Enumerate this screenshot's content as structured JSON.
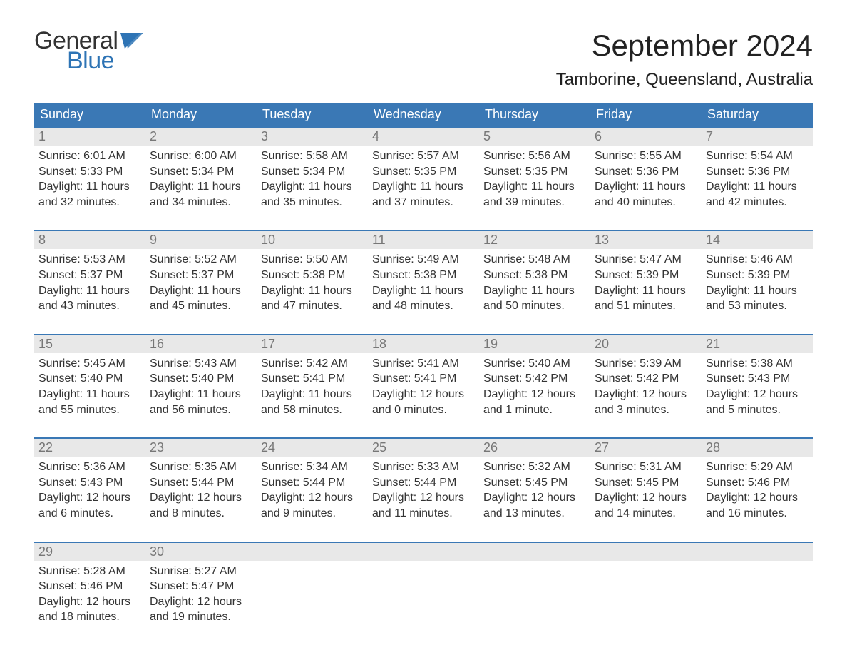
{
  "logo": {
    "text_top": "General",
    "text_bottom": "Blue",
    "flag_color": "#2e74b5",
    "text_color_top": "#333333"
  },
  "header": {
    "month_title": "September 2024",
    "location": "Tamborine, Queensland, Australia"
  },
  "styling": {
    "header_bg": "#3a78b5",
    "header_text": "#ffffff",
    "daynum_bg": "#e8e8e8",
    "daynum_text": "#777777",
    "week_border": "#3a78b5",
    "body_text": "#333333",
    "page_bg": "#ffffff",
    "weekday_fontsize": 18,
    "daynum_fontsize": 18,
    "body_fontsize": 16,
    "title_fontsize": 42,
    "location_fontsize": 24
  },
  "weekdays": [
    "Sunday",
    "Monday",
    "Tuesday",
    "Wednesday",
    "Thursday",
    "Friday",
    "Saturday"
  ],
  "weeks": [
    [
      {
        "day": "1",
        "sunrise": "Sunrise: 6:01 AM",
        "sunset": "Sunset: 5:33 PM",
        "dl1": "Daylight: 11 hours",
        "dl2": "and 32 minutes."
      },
      {
        "day": "2",
        "sunrise": "Sunrise: 6:00 AM",
        "sunset": "Sunset: 5:34 PM",
        "dl1": "Daylight: 11 hours",
        "dl2": "and 34 minutes."
      },
      {
        "day": "3",
        "sunrise": "Sunrise: 5:58 AM",
        "sunset": "Sunset: 5:34 PM",
        "dl1": "Daylight: 11 hours",
        "dl2": "and 35 minutes."
      },
      {
        "day": "4",
        "sunrise": "Sunrise: 5:57 AM",
        "sunset": "Sunset: 5:35 PM",
        "dl1": "Daylight: 11 hours",
        "dl2": "and 37 minutes."
      },
      {
        "day": "5",
        "sunrise": "Sunrise: 5:56 AM",
        "sunset": "Sunset: 5:35 PM",
        "dl1": "Daylight: 11 hours",
        "dl2": "and 39 minutes."
      },
      {
        "day": "6",
        "sunrise": "Sunrise: 5:55 AM",
        "sunset": "Sunset: 5:36 PM",
        "dl1": "Daylight: 11 hours",
        "dl2": "and 40 minutes."
      },
      {
        "day": "7",
        "sunrise": "Sunrise: 5:54 AM",
        "sunset": "Sunset: 5:36 PM",
        "dl1": "Daylight: 11 hours",
        "dl2": "and 42 minutes."
      }
    ],
    [
      {
        "day": "8",
        "sunrise": "Sunrise: 5:53 AM",
        "sunset": "Sunset: 5:37 PM",
        "dl1": "Daylight: 11 hours",
        "dl2": "and 43 minutes."
      },
      {
        "day": "9",
        "sunrise": "Sunrise: 5:52 AM",
        "sunset": "Sunset: 5:37 PM",
        "dl1": "Daylight: 11 hours",
        "dl2": "and 45 minutes."
      },
      {
        "day": "10",
        "sunrise": "Sunrise: 5:50 AM",
        "sunset": "Sunset: 5:38 PM",
        "dl1": "Daylight: 11 hours",
        "dl2": "and 47 minutes."
      },
      {
        "day": "11",
        "sunrise": "Sunrise: 5:49 AM",
        "sunset": "Sunset: 5:38 PM",
        "dl1": "Daylight: 11 hours",
        "dl2": "and 48 minutes."
      },
      {
        "day": "12",
        "sunrise": "Sunrise: 5:48 AM",
        "sunset": "Sunset: 5:38 PM",
        "dl1": "Daylight: 11 hours",
        "dl2": "and 50 minutes."
      },
      {
        "day": "13",
        "sunrise": "Sunrise: 5:47 AM",
        "sunset": "Sunset: 5:39 PM",
        "dl1": "Daylight: 11 hours",
        "dl2": "and 51 minutes."
      },
      {
        "day": "14",
        "sunrise": "Sunrise: 5:46 AM",
        "sunset": "Sunset: 5:39 PM",
        "dl1": "Daylight: 11 hours",
        "dl2": "and 53 minutes."
      }
    ],
    [
      {
        "day": "15",
        "sunrise": "Sunrise: 5:45 AM",
        "sunset": "Sunset: 5:40 PM",
        "dl1": "Daylight: 11 hours",
        "dl2": "and 55 minutes."
      },
      {
        "day": "16",
        "sunrise": "Sunrise: 5:43 AM",
        "sunset": "Sunset: 5:40 PM",
        "dl1": "Daylight: 11 hours",
        "dl2": "and 56 minutes."
      },
      {
        "day": "17",
        "sunrise": "Sunrise: 5:42 AM",
        "sunset": "Sunset: 5:41 PM",
        "dl1": "Daylight: 11 hours",
        "dl2": "and 58 minutes."
      },
      {
        "day": "18",
        "sunrise": "Sunrise: 5:41 AM",
        "sunset": "Sunset: 5:41 PM",
        "dl1": "Daylight: 12 hours",
        "dl2": "and 0 minutes."
      },
      {
        "day": "19",
        "sunrise": "Sunrise: 5:40 AM",
        "sunset": "Sunset: 5:42 PM",
        "dl1": "Daylight: 12 hours",
        "dl2": "and 1 minute."
      },
      {
        "day": "20",
        "sunrise": "Sunrise: 5:39 AM",
        "sunset": "Sunset: 5:42 PM",
        "dl1": "Daylight: 12 hours",
        "dl2": "and 3 minutes."
      },
      {
        "day": "21",
        "sunrise": "Sunrise: 5:38 AM",
        "sunset": "Sunset: 5:43 PM",
        "dl1": "Daylight: 12 hours",
        "dl2": "and 5 minutes."
      }
    ],
    [
      {
        "day": "22",
        "sunrise": "Sunrise: 5:36 AM",
        "sunset": "Sunset: 5:43 PM",
        "dl1": "Daylight: 12 hours",
        "dl2": "and 6 minutes."
      },
      {
        "day": "23",
        "sunrise": "Sunrise: 5:35 AM",
        "sunset": "Sunset: 5:44 PM",
        "dl1": "Daylight: 12 hours",
        "dl2": "and 8 minutes."
      },
      {
        "day": "24",
        "sunrise": "Sunrise: 5:34 AM",
        "sunset": "Sunset: 5:44 PM",
        "dl1": "Daylight: 12 hours",
        "dl2": "and 9 minutes."
      },
      {
        "day": "25",
        "sunrise": "Sunrise: 5:33 AM",
        "sunset": "Sunset: 5:44 PM",
        "dl1": "Daylight: 12 hours",
        "dl2": "and 11 minutes."
      },
      {
        "day": "26",
        "sunrise": "Sunrise: 5:32 AM",
        "sunset": "Sunset: 5:45 PM",
        "dl1": "Daylight: 12 hours",
        "dl2": "and 13 minutes."
      },
      {
        "day": "27",
        "sunrise": "Sunrise: 5:31 AM",
        "sunset": "Sunset: 5:45 PM",
        "dl1": "Daylight: 12 hours",
        "dl2": "and 14 minutes."
      },
      {
        "day": "28",
        "sunrise": "Sunrise: 5:29 AM",
        "sunset": "Sunset: 5:46 PM",
        "dl1": "Daylight: 12 hours",
        "dl2": "and 16 minutes."
      }
    ],
    [
      {
        "day": "29",
        "sunrise": "Sunrise: 5:28 AM",
        "sunset": "Sunset: 5:46 PM",
        "dl1": "Daylight: 12 hours",
        "dl2": "and 18 minutes."
      },
      {
        "day": "30",
        "sunrise": "Sunrise: 5:27 AM",
        "sunset": "Sunset: 5:47 PM",
        "dl1": "Daylight: 12 hours",
        "dl2": "and 19 minutes."
      },
      {
        "empty": true
      },
      {
        "empty": true
      },
      {
        "empty": true
      },
      {
        "empty": true
      },
      {
        "empty": true
      }
    ]
  ]
}
